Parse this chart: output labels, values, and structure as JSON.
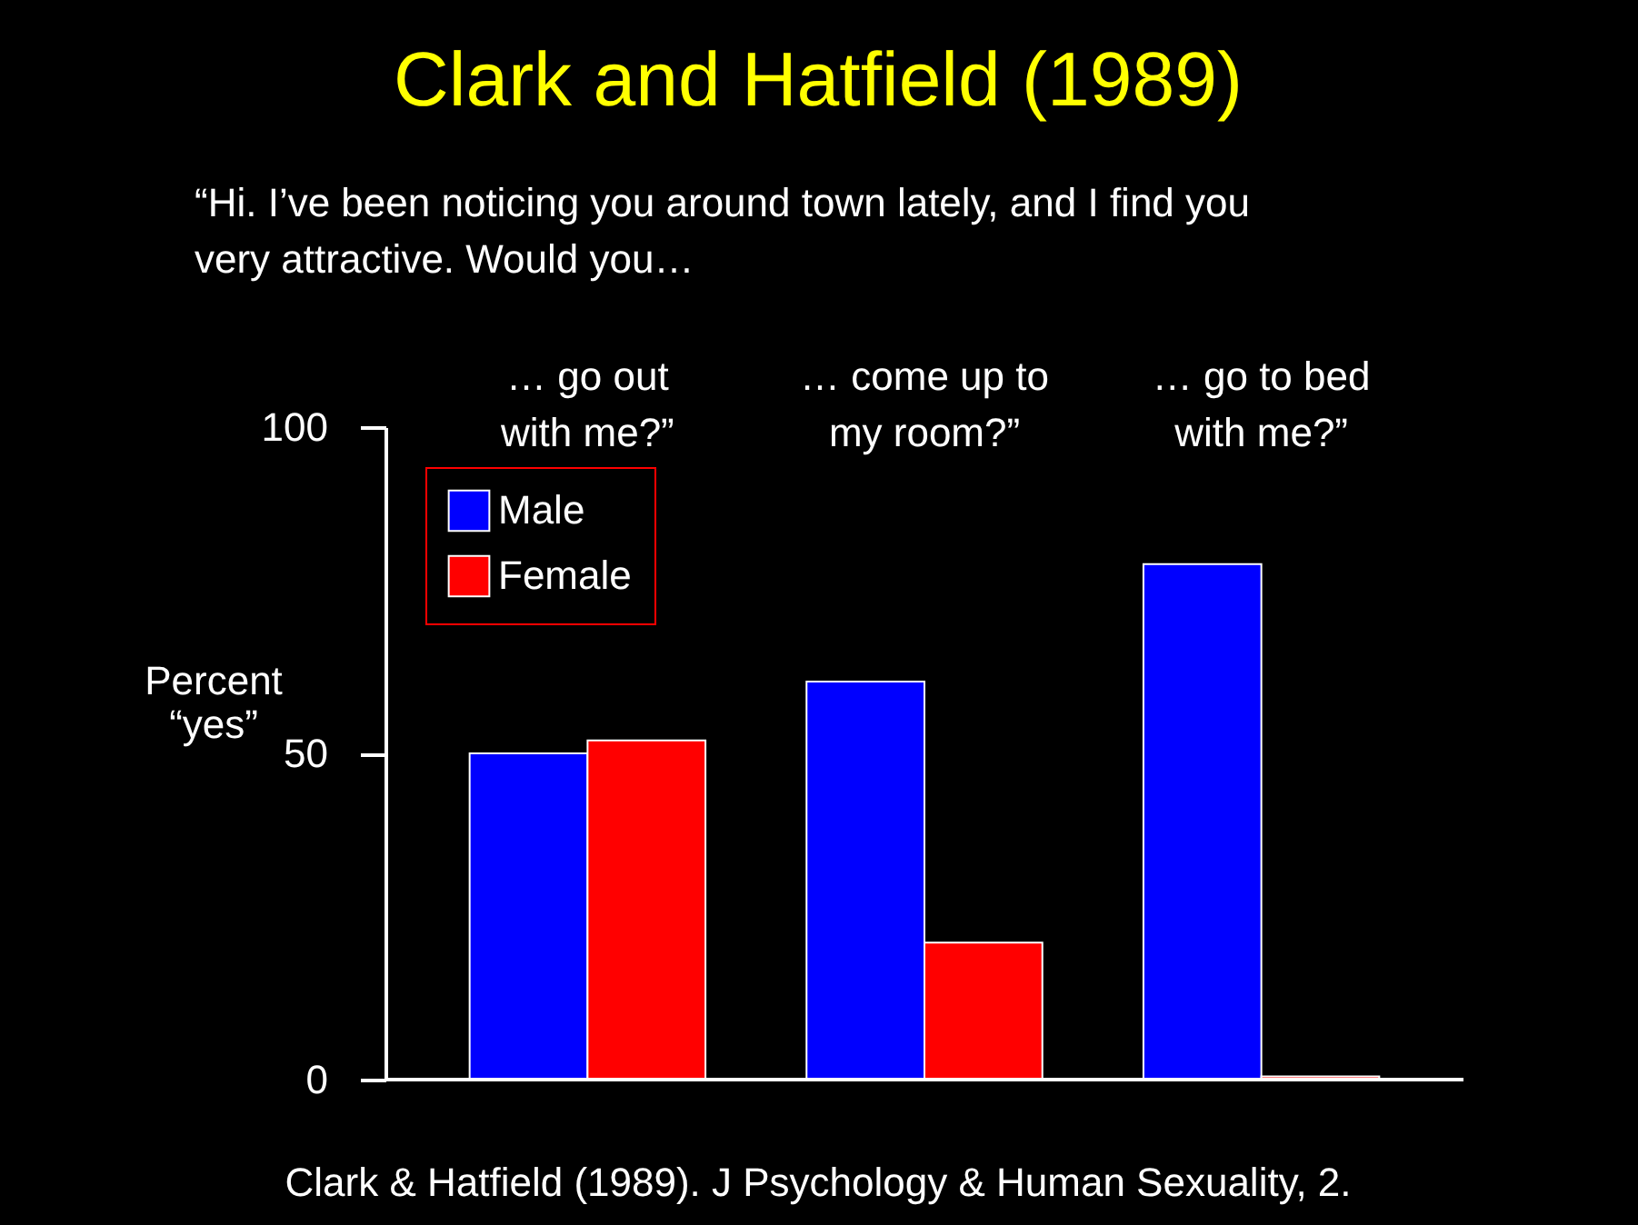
{
  "chart_data": {
    "type": "bar",
    "title": "Clark and Hatfield (1989)",
    "subtitle": "“Hi. I’ve been noticing you around town lately, and I find you\nvery attractive. Would you…",
    "ylabel": "Percent\n“yes”",
    "categories": [
      "… go out\nwith me?”",
      "… come up to\nmy room?”",
      "… go to bed\nwith me?”"
    ],
    "series": [
      {
        "name": "Male",
        "color": "#0000ff",
        "values": [
          50,
          61,
          79
        ]
      },
      {
        "name": "Female",
        "color": "#ff0000",
        "values": [
          52,
          21,
          0.5
        ]
      }
    ],
    "ylim": [
      0,
      100
    ],
    "yticks": [
      0,
      50,
      100
    ],
    "grid": false,
    "legend": "top left",
    "annotations": [
      "Clark & Hatfield (1989). J Psychology & Human Sexuality, 2."
    ]
  }
}
